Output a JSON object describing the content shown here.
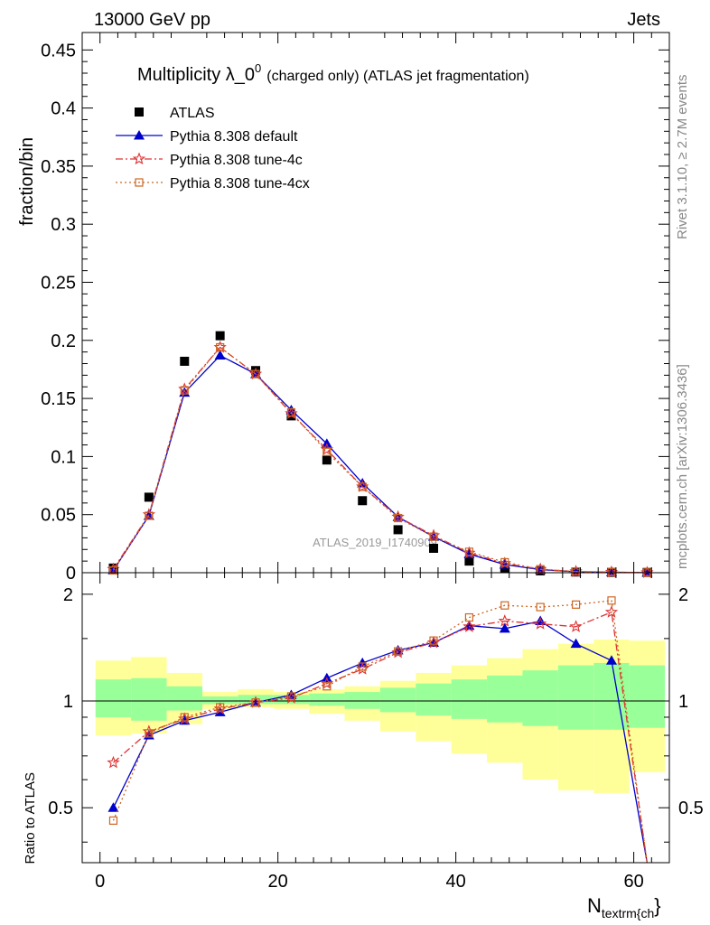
{
  "header": {
    "left": "13000 GeV pp",
    "right": "Jets"
  },
  "side_labels": {
    "top": "Rivet 3.1.10, ≥ 2.7M events",
    "bottom": "mcplots.cern.ch [arXiv:1306.3436]"
  },
  "chart_data": {
    "type": "scatter",
    "title": "Multiplicity λ_0",
    "title_sup": "0",
    "title_suffix": "(charged only) (ATLAS jet fragmentation)",
    "ylabel": "fraction/bin",
    "xlabel_main": "N",
    "xlabel_sub": "textrm{ch",
    "xlabel_close": "}",
    "ratio_ylabel": "Ratio to ATLAS",
    "watermark": "ATLAS_2019_I1740909",
    "xlim": [
      -2,
      64
    ],
    "ylim": [
      0,
      0.465
    ],
    "ratio_ylim": [
      0.35,
      2.3
    ],
    "x_ticks": [
      "0",
      "20",
      "40",
      "60"
    ],
    "y_ticks": [
      "0",
      "0.05",
      "0.1",
      "0.15",
      "0.2",
      "0.25",
      "0.3",
      "0.35",
      "0.4",
      "0.45"
    ],
    "ratio_ticks": [
      "0.5",
      "1",
      "2"
    ],
    "x": [
      1.5,
      5.5,
      9.5,
      13.5,
      17.5,
      21.5,
      25.5,
      29.5,
      33.5,
      37.5,
      41.5,
      45.5,
      49.5,
      53.5,
      57.5,
      61.5
    ],
    "bin_edges": [
      -0.5,
      3.5,
      7.5,
      11.5,
      15.5,
      19.5,
      23.5,
      27.5,
      31.5,
      35.5,
      39.5,
      43.5,
      47.5,
      51.5,
      55.5,
      59.5,
      63.5
    ],
    "series": [
      {
        "name": "ATLAS",
        "color": "#000000",
        "marker": "square",
        "values": [
          0.004,
          0.065,
          0.182,
          0.204,
          0.174,
          0.135,
          0.097,
          0.062,
          0.037,
          0.021,
          0.01,
          0.004,
          0.0016,
          0.0006,
          0.0003,
          0.0002
        ]
      },
      {
        "name": "Pythia 8.308 default",
        "color": "#0000cc",
        "marker": "triangle",
        "dash": "",
        "values": [
          0.002,
          0.049,
          0.155,
          0.187,
          0.171,
          0.14,
          0.111,
          0.077,
          0.048,
          0.031,
          0.016,
          0.007,
          0.0026,
          0.0008,
          0.0004,
          0.0001
        ],
        "ratio": [
          0.5,
          0.8,
          0.88,
          0.93,
          0.99,
          1.04,
          1.16,
          1.28,
          1.39,
          1.46,
          1.63,
          1.6,
          1.68,
          1.45,
          1.3,
          0.3
        ]
      },
      {
        "name": "Pythia 8.308 tune-4c",
        "color": "#dd3333",
        "marker": "star",
        "dash": "8,3,2,3",
        "values": [
          0.003,
          0.05,
          0.158,
          0.194,
          0.171,
          0.137,
          0.106,
          0.074,
          0.048,
          0.032,
          0.017,
          0.008,
          0.003,
          0.001,
          0.0005,
          0.0001
        ],
        "ratio": [
          0.67,
          0.82,
          0.89,
          0.95,
          0.99,
          1.02,
          1.12,
          1.23,
          1.37,
          1.46,
          1.62,
          1.68,
          1.65,
          1.62,
          1.78,
          0.3
        ]
      },
      {
        "name": "Pythia 8.308 tune-4cx",
        "color": "#cc6622",
        "marker": "opensquare",
        "dash": "2,3",
        "values": [
          0.002,
          0.049,
          0.157,
          0.194,
          0.171,
          0.138,
          0.104,
          0.074,
          0.047,
          0.031,
          0.018,
          0.009,
          0.003,
          0.001,
          0.0006,
          0.0001
        ],
        "ratio": [
          0.46,
          0.81,
          0.9,
          0.96,
          0.99,
          1.03,
          1.1,
          1.25,
          1.38,
          1.48,
          1.72,
          1.86,
          1.84,
          1.87,
          1.92,
          0.3
        ]
      }
    ],
    "band_yellow": {
      "low": [
        0.8,
        0.81,
        0.86,
        0.95,
        0.96,
        0.95,
        0.92,
        0.88,
        0.82,
        0.77,
        0.71,
        0.67,
        0.6,
        0.56,
        0.55,
        0.63
      ],
      "high": [
        1.3,
        1.33,
        1.2,
        1.06,
        1.08,
        1.06,
        1.08,
        1.1,
        1.14,
        1.2,
        1.26,
        1.32,
        1.4,
        1.45,
        1.49,
        1.48
      ]
    },
    "band_green": {
      "low": [
        0.9,
        0.88,
        0.94,
        0.98,
        0.98,
        0.98,
        0.97,
        0.95,
        0.93,
        0.91,
        0.89,
        0.87,
        0.85,
        0.83,
        0.83,
        0.84
      ],
      "high": [
        1.15,
        1.16,
        1.1,
        1.03,
        1.04,
        1.04,
        1.05,
        1.06,
        1.09,
        1.12,
        1.15,
        1.18,
        1.22,
        1.26,
        1.28,
        1.26
      ]
    }
  }
}
